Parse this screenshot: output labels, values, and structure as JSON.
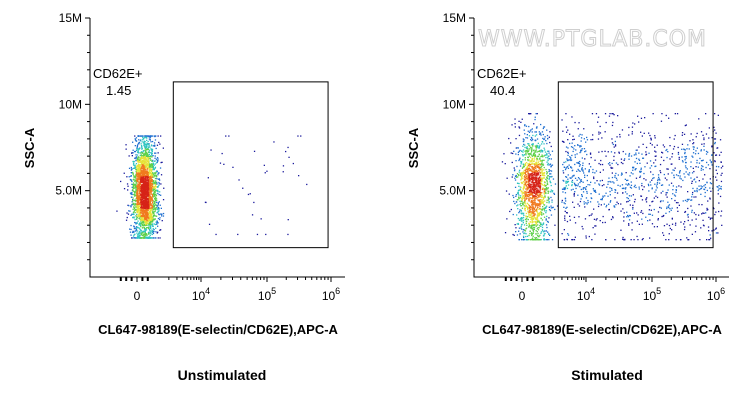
{
  "watermark": "WWW.PTGLAB.COM",
  "colors": {
    "density_scale": [
      "#1a1a9c",
      "#1e6fd0",
      "#2ec4c0",
      "#5fd04a",
      "#e7e339",
      "#f07a1e",
      "#d62318"
    ],
    "axis": "#000000",
    "gate": "#000000"
  },
  "chart_data": [
    {
      "type": "scatter",
      "subtype": "flow-cytometry-density-plot",
      "caption": "Unstimulated",
      "xlabel": "CL647-98189(E-selectin/CD62E),APC-A",
      "ylabel": "SSC-A",
      "x_scale": "biexponential",
      "y_scale": "linear",
      "ylim": [
        0,
        15000000
      ],
      "x_ticks": [
        {
          "value": 0,
          "base": "0",
          "exp": ""
        },
        {
          "value": 10000,
          "base": "10",
          "exp": "4"
        },
        {
          "value": 100000,
          "base": "10",
          "exp": "5"
        },
        {
          "value": 1000000,
          "base": "10",
          "exp": "6"
        }
      ],
      "y_ticks": [
        {
          "value": 5000000,
          "label": "5.0M"
        },
        {
          "value": 10000000,
          "label": "10M"
        },
        {
          "value": 15000000,
          "label": "15M"
        }
      ],
      "gate": {
        "name": "CD62E+",
        "percent": "1.45",
        "x_range": [
          2500,
          900000
        ],
        "y_range": [
          1700000,
          11300000
        ]
      },
      "populations": [
        {
          "x_center": 400,
          "x_spread": 350,
          "y_center": 5000000,
          "y_spread": 1500000,
          "y_range": [
            2300000,
            8200000
          ],
          "share": 0.985
        },
        {
          "x_center": 70000,
          "x_spread": 3.0,
          "y_center": 5600000,
          "y_spread": 1700000,
          "y_range": [
            2500000,
            8200000
          ],
          "share": 0.015
        }
      ]
    },
    {
      "type": "scatter",
      "subtype": "flow-cytometry-density-plot",
      "caption": "Stimulated",
      "xlabel": "CL647-98189(E-selectin/CD62E),APC-A",
      "ylabel": "SSC-A",
      "x_scale": "biexponential",
      "y_scale": "linear",
      "ylim": [
        0,
        15000000
      ],
      "x_ticks": [
        {
          "value": 0,
          "base": "0",
          "exp": ""
        },
        {
          "value": 10000,
          "base": "10",
          "exp": "4"
        },
        {
          "value": 100000,
          "base": "10",
          "exp": "5"
        },
        {
          "value": 1000000,
          "base": "10",
          "exp": "6"
        }
      ],
      "y_ticks": [
        {
          "value": 5000000,
          "label": "5.0M"
        },
        {
          "value": 10000000,
          "label": "10M"
        },
        {
          "value": 15000000,
          "label": "15M"
        }
      ],
      "gate": {
        "name": "CD62E+",
        "percent": "40.4",
        "x_range": [
          2500,
          900000
        ],
        "y_range": [
          1700000,
          11300000
        ]
      },
      "populations": [
        {
          "x_center": 600,
          "x_spread": 500,
          "y_center": 5200000,
          "y_spread": 1600000,
          "y_range": [
            2200000,
            9500000
          ],
          "share": 0.596
        },
        {
          "x_center": 60000,
          "x_spread": 5.0,
          "y_center": 5600000,
          "y_spread": 1800000,
          "y_range": [
            2200000,
            9500000
          ],
          "share": 0.404
        }
      ]
    }
  ]
}
